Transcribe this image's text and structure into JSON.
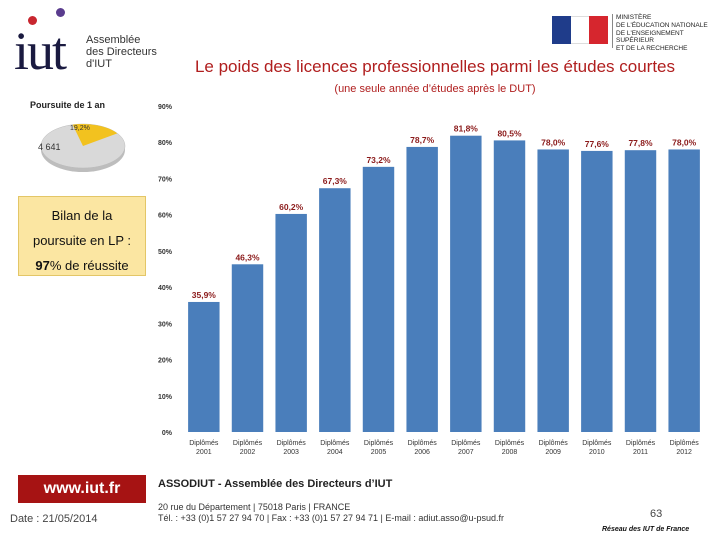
{
  "header": {
    "logo": {
      "word": "iut",
      "sub_lines": [
        "Assemblée",
        "des Directeurs",
        "d'IUT"
      ]
    },
    "ministere_lines": [
      "Ministère",
      "de l'Éducation nationale",
      "de l'Enseignement supérieur",
      "et de la Recherche"
    ],
    "title": "Le poids des licences professionnelles parmi les études courtes",
    "subtitle": "(une seule année d’études après le DUT)"
  },
  "pie": {
    "title": "Poursuite de 1 an",
    "slice_label": "19,2%",
    "count_label": "4 641",
    "highlight_fraction": 0.192,
    "colors": {
      "highlight": "#f2c21f",
      "rest": "#d9d9d9"
    }
  },
  "bilan": {
    "line1": "Bilan de la",
    "line2": "poursuite en LP :",
    "line3_value": "97",
    "line3_rest": "% de réussite"
  },
  "chart_data": {
    "type": "bar",
    "categories": [
      [
        "Diplômés",
        "2001"
      ],
      [
        "Diplômés",
        "2002"
      ],
      [
        "Diplômés",
        "2003"
      ],
      [
        "Diplômés",
        "2004"
      ],
      [
        "Diplômés",
        "2005"
      ],
      [
        "Diplômés",
        "2006"
      ],
      [
        "Diplômés",
        "2007"
      ],
      [
        "Diplômés",
        "2008"
      ],
      [
        "Diplômés",
        "2009"
      ],
      [
        "Diplômés",
        "2010"
      ],
      [
        "Diplômés",
        "2011"
      ],
      [
        "Diplômés",
        "2012"
      ]
    ],
    "values": [
      35.9,
      46.3,
      60.2,
      67.3,
      73.2,
      78.7,
      81.8,
      80.5,
      78.0,
      77.6,
      77.8,
      78.0
    ],
    "value_labels": [
      "35,9%",
      "46,3%",
      "60,2%",
      "67,3%",
      "73,2%",
      "78,7%",
      "81,8%",
      "80,5%",
      "78,0%",
      "77,6%",
      "77,8%",
      "78,0%"
    ],
    "yticks": [
      0,
      10,
      20,
      30,
      40,
      50,
      60,
      70,
      80,
      90
    ],
    "ytick_labels": [
      "0%",
      "10%",
      "20%",
      "30%",
      "40%",
      "50%",
      "60%",
      "70%",
      "80%",
      "90%"
    ],
    "ylim": [
      0,
      90
    ],
    "title": "",
    "xlabel": "",
    "ylabel": "",
    "grid": false,
    "colors": {
      "bar": "#4a7ebb",
      "label": "#8b1a1a"
    }
  },
  "footer": {
    "website": "www.iut.fr",
    "date": "Date : 21/05/2014",
    "org": "ASSODIUT - Assemblée des Directeurs d’IUT",
    "address": "20 rue du Département | 75018 Paris | FRANCE",
    "contact": "Tél. : +33 (0)1 57 27 94 70 | Fax : +33 (0)1 57 27 94 71 | E-mail : adiut.asso@u-psud.fr",
    "page": "63",
    "reseau": "Réseau des IUT de France"
  }
}
